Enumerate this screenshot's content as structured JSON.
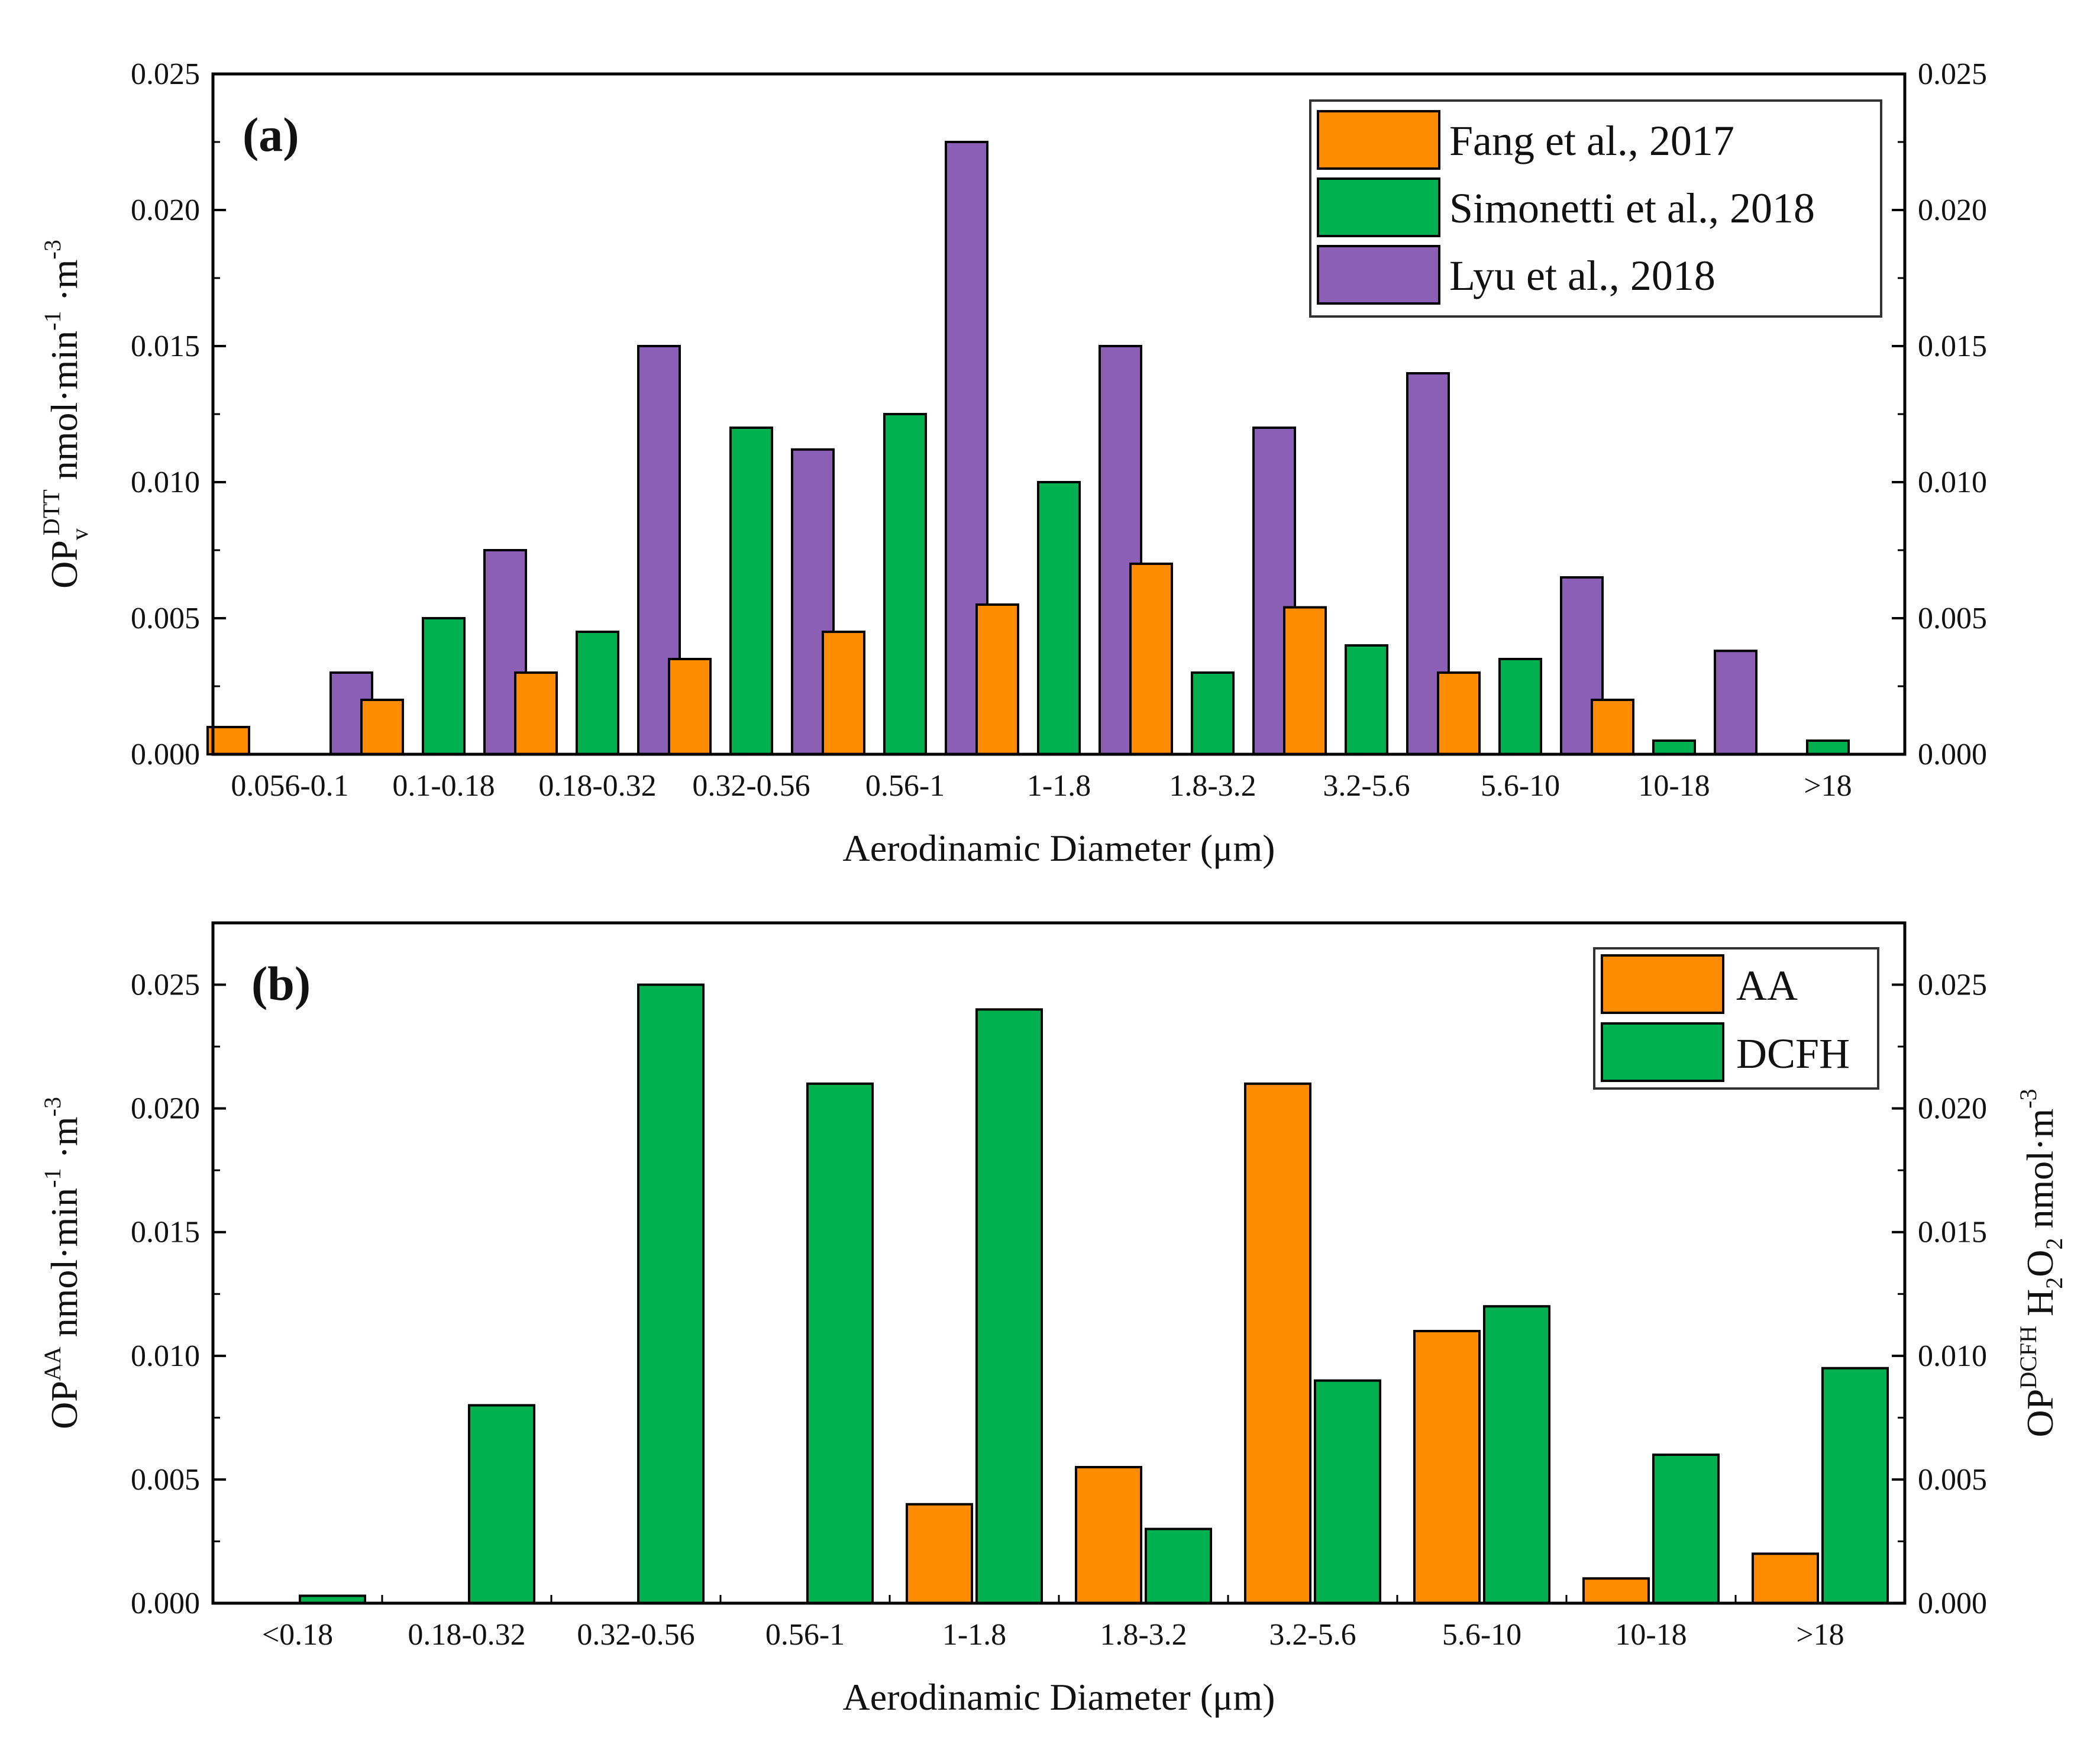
{
  "chart_data": [
    {
      "type": "bar",
      "panel_label": "(a)",
      "categories": [
        "0.056-0.1",
        "0.1-0.18",
        "0.18-0.32",
        "0.32-0.56",
        "0.56-1",
        "1-1.8",
        "1.8-3.2",
        "3.2-5.6",
        "5.6-10",
        "10-18",
        ">18"
      ],
      "series": [
        {
          "name": "Fang et al., 2017",
          "color": "#ff8c00",
          "values": [
            0.001,
            0.002,
            0.003,
            0.0035,
            0.0045,
            0.0055,
            0.007,
            0.0054,
            0.003,
            0.002,
            null
          ]
        },
        {
          "name": "Simonetti et al., 2018",
          "color": "#00b14f",
          "values": [
            null,
            0.005,
            0.0045,
            0.012,
            0.0125,
            0.01,
            0.003,
            0.004,
            0.0035,
            0.0005,
            0.0005
          ]
        },
        {
          "name": "Lyu et al., 2018",
          "color": "#8a5fb5",
          "values": [
            0.003,
            0.0075,
            0.015,
            0.0112,
            0.0225,
            0.015,
            0.012,
            0.014,
            0.0065,
            0.0038,
            null
          ]
        }
      ],
      "xlabel": "Aerodinamic Diameter (μm)",
      "ylabel": {
        "base": "OP",
        "sub": "v",
        "sup": "DTT",
        "rest": " nmol·min",
        "sup2": "-1",
        "mid": " ·m",
        "sup3": "-3"
      },
      "ylim": [
        0,
        0.025
      ],
      "yticks": [
        "0.000",
        "0.005",
        "0.010",
        "0.015",
        "0.020",
        "0.025"
      ],
      "legend_position": "top-right",
      "right_axis_mirrored": true
    },
    {
      "type": "bar",
      "panel_label": "(b)",
      "categories": [
        "<0.18",
        "0.18-0.32",
        "0.32-0.56",
        "0.56-1",
        "1-1.8",
        "1.8-3.2",
        "3.2-5.6",
        "5.6-10",
        "10-18",
        ">18"
      ],
      "series": [
        {
          "name": "AA",
          "color": "#ff8c00",
          "values": [
            null,
            null,
            null,
            null,
            0.004,
            0.0055,
            0.021,
            0.011,
            0.001,
            0.002
          ]
        },
        {
          "name": "DCFH",
          "color": "#00b14f",
          "values": [
            0.0003,
            0.008,
            0.025,
            0.021,
            0.024,
            0.003,
            0.009,
            0.012,
            0.006,
            0.0095
          ]
        }
      ],
      "xlabel": "Aerodinamic Diameter (μm)",
      "ylabel": {
        "base": "OP",
        "sup": "AA",
        "rest": " nmol·min",
        "sup2": "-1",
        "mid": " ·m",
        "sup3": "-3"
      },
      "ylabel_right": {
        "base": "OP",
        "sup": "DCFH",
        "rest": " H",
        "sub": "2",
        "mid": "O",
        "sub2": "2",
        "tail": " nmol·m",
        "sup3": "-3"
      },
      "ylim": [
        0,
        0.0275
      ],
      "yticks": [
        "0.000",
        "0.005",
        "0.010",
        "0.015",
        "0.020",
        "0.025"
      ],
      "legend_position": "top-right",
      "right_axis_mirrored": true
    }
  ]
}
